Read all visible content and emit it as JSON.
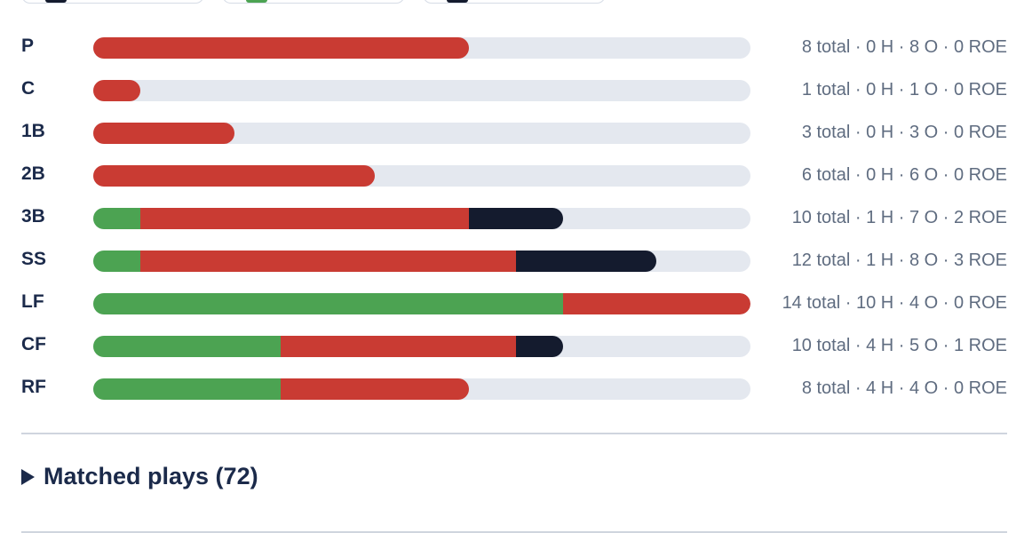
{
  "colors": {
    "hit": "#4ca352",
    "out": "#c93b33",
    "roe": "#141b2e",
    "track": "#e4e8ef"
  },
  "positions": [
    {
      "pos": "P",
      "total": 8,
      "hits": 0,
      "outs": 8,
      "roe": 0,
      "summary": "8 total · 0 H · 8 O · 0 ROE"
    },
    {
      "pos": "C",
      "total": 1,
      "hits": 0,
      "outs": 1,
      "roe": 0,
      "summary": "1 total · 0 H · 1 O · 0 ROE"
    },
    {
      "pos": "1B",
      "total": 3,
      "hits": 0,
      "outs": 3,
      "roe": 0,
      "summary": "3 total · 0 H · 3 O · 0 ROE"
    },
    {
      "pos": "2B",
      "total": 6,
      "hits": 0,
      "outs": 6,
      "roe": 0,
      "summary": "6 total · 0 H · 6 O · 0 ROE"
    },
    {
      "pos": "3B",
      "total": 10,
      "hits": 1,
      "outs": 7,
      "roe": 2,
      "summary": "10 total · 1 H · 7 O · 2 ROE"
    },
    {
      "pos": "SS",
      "total": 12,
      "hits": 1,
      "outs": 8,
      "roe": 3,
      "summary": "12 total · 1 H · 8 O · 3 ROE"
    },
    {
      "pos": "LF",
      "total": 14,
      "hits": 10,
      "outs": 4,
      "roe": 0,
      "summary": "14 total · 10 H · 4 O · 0 ROE"
    },
    {
      "pos": "CF",
      "total": 10,
      "hits": 4,
      "outs": 5,
      "roe": 1,
      "summary": "10 total · 4 H · 5 O · 1 ROE"
    },
    {
      "pos": "RF",
      "total": 8,
      "hits": 4,
      "outs": 4,
      "roe": 0,
      "summary": "8 total · 4 H · 4 O · 0 ROE"
    }
  ],
  "max_total": 14,
  "matched_plays": {
    "label": "Matched plays (72)"
  }
}
